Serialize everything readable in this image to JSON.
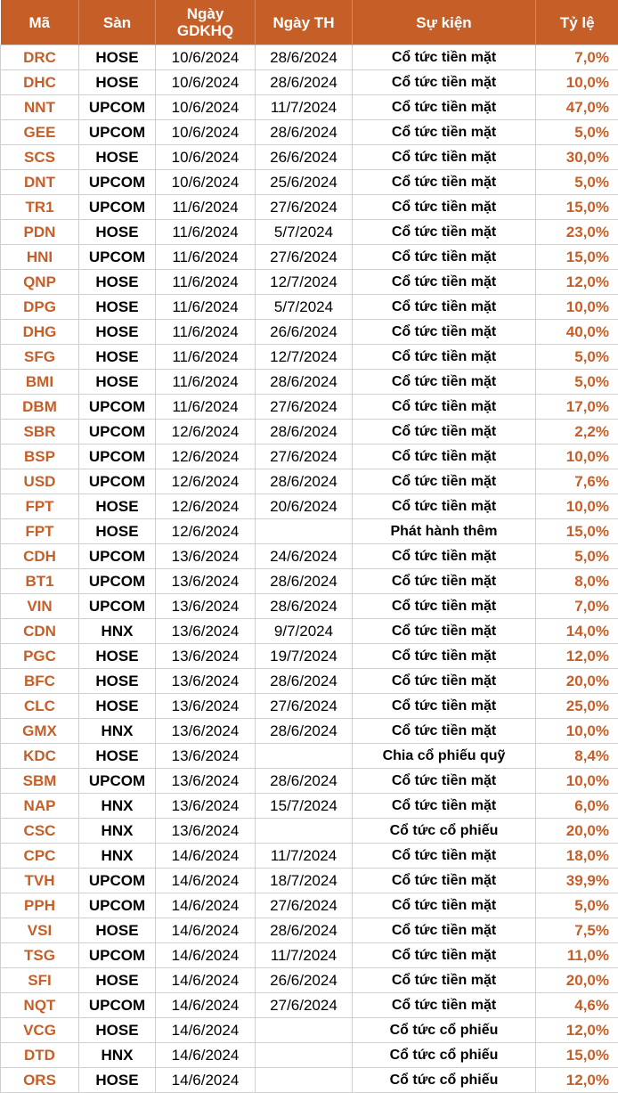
{
  "header": {
    "col_code": "Mã",
    "col_exchange": "Sàn",
    "col_ex_date_line1": "Ngày",
    "col_ex_date_line2": "GDKHQ",
    "col_exec_date": "Ngày TH",
    "col_event": "Sự kiện",
    "col_rate": "Tỷ lệ"
  },
  "rows": [
    {
      "code": "DRC",
      "exchange": "HOSE",
      "ex_date": "10/6/2024",
      "exec_date": "28/6/2024",
      "event": "Cổ tức tiền mặt",
      "rate": "7,0%"
    },
    {
      "code": "DHC",
      "exchange": "HOSE",
      "ex_date": "10/6/2024",
      "exec_date": "28/6/2024",
      "event": "Cổ tức tiền mặt",
      "rate": "10,0%"
    },
    {
      "code": "NNT",
      "exchange": "UPCOM",
      "ex_date": "10/6/2024",
      "exec_date": "11/7/2024",
      "event": "Cổ tức tiền mặt",
      "rate": "47,0%"
    },
    {
      "code": "GEE",
      "exchange": "UPCOM",
      "ex_date": "10/6/2024",
      "exec_date": "28/6/2024",
      "event": "Cổ tức tiền mặt",
      "rate": "5,0%"
    },
    {
      "code": "SCS",
      "exchange": "HOSE",
      "ex_date": "10/6/2024",
      "exec_date": "26/6/2024",
      "event": "Cổ tức tiền mặt",
      "rate": "30,0%"
    },
    {
      "code": "DNT",
      "exchange": "UPCOM",
      "ex_date": "10/6/2024",
      "exec_date": "25/6/2024",
      "event": "Cổ tức tiền mặt",
      "rate": "5,0%"
    },
    {
      "code": "TR1",
      "exchange": "UPCOM",
      "ex_date": "11/6/2024",
      "exec_date": "27/6/2024",
      "event": "Cổ tức tiền mặt",
      "rate": "15,0%"
    },
    {
      "code": "PDN",
      "exchange": "HOSE",
      "ex_date": "11/6/2024",
      "exec_date": "5/7/2024",
      "event": "Cổ tức tiền mặt",
      "rate": "23,0%"
    },
    {
      "code": "HNI",
      "exchange": "UPCOM",
      "ex_date": "11/6/2024",
      "exec_date": "27/6/2024",
      "event": "Cổ tức tiền mặt",
      "rate": "15,0%"
    },
    {
      "code": "QNP",
      "exchange": "HOSE",
      "ex_date": "11/6/2024",
      "exec_date": "12/7/2024",
      "event": "Cổ tức tiền mặt",
      "rate": "12,0%"
    },
    {
      "code": "DPG",
      "exchange": "HOSE",
      "ex_date": "11/6/2024",
      "exec_date": "5/7/2024",
      "event": "Cổ tức tiền mặt",
      "rate": "10,0%"
    },
    {
      "code": "DHG",
      "exchange": "HOSE",
      "ex_date": "11/6/2024",
      "exec_date": "26/6/2024",
      "event": "Cổ tức tiền mặt",
      "rate": "40,0%"
    },
    {
      "code": "SFG",
      "exchange": "HOSE",
      "ex_date": "11/6/2024",
      "exec_date": "12/7/2024",
      "event": "Cổ tức tiền mặt",
      "rate": "5,0%"
    },
    {
      "code": "BMI",
      "exchange": "HOSE",
      "ex_date": "11/6/2024",
      "exec_date": "28/6/2024",
      "event": "Cổ tức tiền mặt",
      "rate": "5,0%"
    },
    {
      "code": "DBM",
      "exchange": "UPCOM",
      "ex_date": "11/6/2024",
      "exec_date": "27/6/2024",
      "event": "Cổ tức tiền mặt",
      "rate": "17,0%"
    },
    {
      "code": "SBR",
      "exchange": "UPCOM",
      "ex_date": "12/6/2024",
      "exec_date": "28/6/2024",
      "event": "Cổ tức tiền mặt",
      "rate": "2,2%"
    },
    {
      "code": "BSP",
      "exchange": "UPCOM",
      "ex_date": "12/6/2024",
      "exec_date": "27/6/2024",
      "event": "Cổ tức tiền mặt",
      "rate": "10,0%"
    },
    {
      "code": "USD",
      "exchange": "UPCOM",
      "ex_date": "12/6/2024",
      "exec_date": "28/6/2024",
      "event": "Cổ tức tiền mặt",
      "rate": "7,6%"
    },
    {
      "code": "FPT",
      "exchange": "HOSE",
      "ex_date": "12/6/2024",
      "exec_date": "20/6/2024",
      "event": "Cổ tức tiền mặt",
      "rate": "10,0%"
    },
    {
      "code": "FPT",
      "exchange": "HOSE",
      "ex_date": "12/6/2024",
      "exec_date": "",
      "event": "Phát hành thêm",
      "rate": "15,0%"
    },
    {
      "code": "CDH",
      "exchange": "UPCOM",
      "ex_date": "13/6/2024",
      "exec_date": "24/6/2024",
      "event": "Cổ tức tiền mặt",
      "rate": "5,0%"
    },
    {
      "code": "BT1",
      "exchange": "UPCOM",
      "ex_date": "13/6/2024",
      "exec_date": "28/6/2024",
      "event": "Cổ tức tiền mặt",
      "rate": "8,0%"
    },
    {
      "code": "VIN",
      "exchange": "UPCOM",
      "ex_date": "13/6/2024",
      "exec_date": "28/6/2024",
      "event": "Cổ tức tiền mặt",
      "rate": "7,0%"
    },
    {
      "code": "CDN",
      "exchange": "HNX",
      "ex_date": "13/6/2024",
      "exec_date": "9/7/2024",
      "event": "Cổ tức tiền mặt",
      "rate": "14,0%"
    },
    {
      "code": "PGC",
      "exchange": "HOSE",
      "ex_date": "13/6/2024",
      "exec_date": "19/7/2024",
      "event": "Cổ tức tiền mặt",
      "rate": "12,0%"
    },
    {
      "code": "BFC",
      "exchange": "HOSE",
      "ex_date": "13/6/2024",
      "exec_date": "28/6/2024",
      "event": "Cổ tức tiền mặt",
      "rate": "20,0%"
    },
    {
      "code": "CLC",
      "exchange": "HOSE",
      "ex_date": "13/6/2024",
      "exec_date": "27/6/2024",
      "event": "Cổ tức tiền mặt",
      "rate": "25,0%"
    },
    {
      "code": "GMX",
      "exchange": "HNX",
      "ex_date": "13/6/2024",
      "exec_date": "28/6/2024",
      "event": "Cổ tức tiền mặt",
      "rate": "10,0%"
    },
    {
      "code": "KDC",
      "exchange": "HOSE",
      "ex_date": "13/6/2024",
      "exec_date": "",
      "event": "Chia cổ phiếu quỹ",
      "rate": "8,4%"
    },
    {
      "code": "SBM",
      "exchange": "UPCOM",
      "ex_date": "13/6/2024",
      "exec_date": "28/6/2024",
      "event": "Cổ tức tiền mặt",
      "rate": "10,0%"
    },
    {
      "code": "NAP",
      "exchange": "HNX",
      "ex_date": "13/6/2024",
      "exec_date": "15/7/2024",
      "event": "Cổ tức tiền mặt",
      "rate": "6,0%"
    },
    {
      "code": "CSC",
      "exchange": "HNX",
      "ex_date": "13/6/2024",
      "exec_date": "",
      "event": "Cổ tức cổ phiếu",
      "rate": "20,0%"
    },
    {
      "code": "CPC",
      "exchange": "HNX",
      "ex_date": "14/6/2024",
      "exec_date": "11/7/2024",
      "event": "Cổ tức tiền mặt",
      "rate": "18,0%"
    },
    {
      "code": "TVH",
      "exchange": "UPCOM",
      "ex_date": "14/6/2024",
      "exec_date": "18/7/2024",
      "event": "Cổ tức tiền mặt",
      "rate": "39,9%"
    },
    {
      "code": "PPH",
      "exchange": "UPCOM",
      "ex_date": "14/6/2024",
      "exec_date": "27/6/2024",
      "event": "Cổ tức tiền mặt",
      "rate": "5,0%"
    },
    {
      "code": "VSI",
      "exchange": "HOSE",
      "ex_date": "14/6/2024",
      "exec_date": "28/6/2024",
      "event": "Cổ tức tiền mặt",
      "rate": "7,5%"
    },
    {
      "code": "TSG",
      "exchange": "UPCOM",
      "ex_date": "14/6/2024",
      "exec_date": "11/7/2024",
      "event": "Cổ tức tiền mặt",
      "rate": "11,0%"
    },
    {
      "code": "SFI",
      "exchange": "HOSE",
      "ex_date": "14/6/2024",
      "exec_date": "26/6/2024",
      "event": "Cổ tức tiền mặt",
      "rate": "20,0%"
    },
    {
      "code": "NQT",
      "exchange": "UPCOM",
      "ex_date": "14/6/2024",
      "exec_date": "27/6/2024",
      "event": "Cổ tức tiền mặt",
      "rate": "4,6%"
    },
    {
      "code": "VCG",
      "exchange": "HOSE",
      "ex_date": "14/6/2024",
      "exec_date": "",
      "event": "Cổ tức cổ phiếu",
      "rate": "12,0%"
    },
    {
      "code": "DTD",
      "exchange": "HNX",
      "ex_date": "14/6/2024",
      "exec_date": "",
      "event": "Cổ tức cổ phiếu",
      "rate": "15,0%"
    },
    {
      "code": "ORS",
      "exchange": "HOSE",
      "ex_date": "14/6/2024",
      "exec_date": "",
      "event": "Cổ tức cổ phiếu",
      "rate": "12,0%"
    }
  ],
  "colors": {
    "header_bg": "#c65f27",
    "accent": "#c65f27"
  }
}
